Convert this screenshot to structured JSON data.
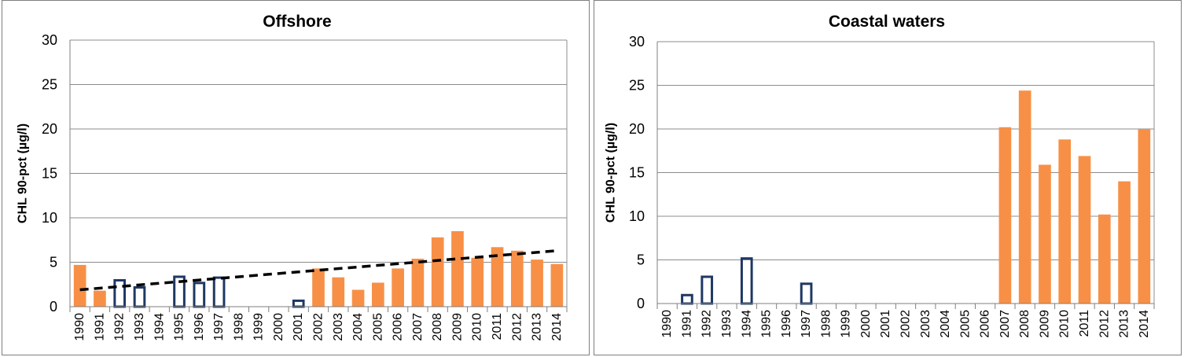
{
  "chart_data": [
    {
      "type": "bar",
      "title": "Offshore",
      "xlabel": "",
      "ylabel": "CHL 90-pct (µg/l)",
      "ylim": [
        0,
        30
      ],
      "yticks": [
        0,
        5,
        10,
        15,
        20,
        25,
        30
      ],
      "grid": true,
      "categories": [
        "1990",
        "1991",
        "1992",
        "1993",
        "1994",
        "1995",
        "1996",
        "1997",
        "1998",
        "1999",
        "2000",
        "2001",
        "2002",
        "2003",
        "2004",
        "2005",
        "2006",
        "2007",
        "2008",
        "2009",
        "2010",
        "2011",
        "2012",
        "2013",
        "2014"
      ],
      "series": [
        {
          "style": "filled",
          "color": "#f79046",
          "values": [
            4.7,
            1.8,
            null,
            null,
            null,
            null,
            null,
            null,
            null,
            null,
            null,
            null,
            4.3,
            3.3,
            1.9,
            2.7,
            4.3,
            5.4,
            7.8,
            8.5,
            5.5,
            6.7,
            6.3,
            5.3,
            4.8
          ]
        },
        {
          "style": "outline",
          "color": "#1f3864",
          "values": [
            null,
            null,
            3.1,
            2.3,
            null,
            3.5,
            2.8,
            3.4,
            null,
            null,
            null,
            0.8,
            null,
            null,
            null,
            null,
            null,
            null,
            null,
            null,
            null,
            null,
            null,
            null,
            null
          ]
        }
      ],
      "trendline": {
        "style": "dashed",
        "color": "#000000",
        "start": 1.9,
        "end": 6.3
      }
    },
    {
      "type": "bar",
      "title": "Coastal waters",
      "xlabel": "",
      "ylabel": "CHL 90-pct (µg/l)",
      "ylim": [
        0,
        30
      ],
      "yticks": [
        0,
        5,
        10,
        15,
        20,
        25,
        30
      ],
      "grid": true,
      "categories": [
        "1990",
        "1991",
        "1992",
        "1993",
        "1994",
        "1995",
        "1996",
        "1997",
        "1998",
        "1999",
        "2000",
        "2001",
        "2002",
        "2003",
        "2004",
        "2005",
        "2006",
        "2007",
        "2008",
        "2009",
        "2010",
        "2011",
        "2012",
        "2013",
        "2014"
      ],
      "series": [
        {
          "style": "filled",
          "color": "#f79046",
          "values": [
            null,
            null,
            null,
            null,
            null,
            null,
            null,
            null,
            null,
            null,
            null,
            null,
            null,
            null,
            null,
            null,
            null,
            20.2,
            24.4,
            15.9,
            18.8,
            16.9,
            10.2,
            14.0,
            20.0
          ]
        },
        {
          "style": "outline",
          "color": "#1f3864",
          "values": [
            null,
            1.1,
            3.2,
            null,
            5.3,
            null,
            null,
            2.4,
            null,
            null,
            null,
            null,
            null,
            null,
            null,
            null,
            null,
            null,
            null,
            null,
            null,
            null,
            null,
            null,
            null
          ]
        }
      ]
    }
  ]
}
